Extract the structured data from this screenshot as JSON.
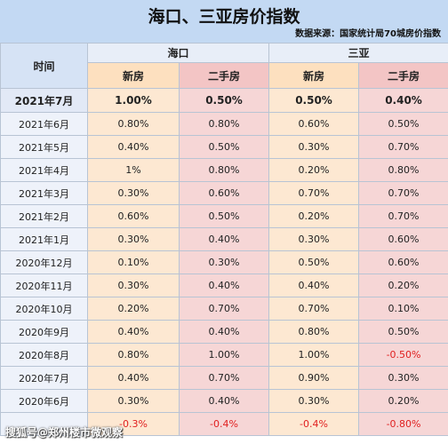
{
  "title": "海口、三亚房价指数",
  "source": "数据来源：国家统计局70城房价指数",
  "header": {
    "time_label": "时间",
    "city_a": "海口",
    "city_b": "三亚",
    "new_label": "新房",
    "old_label": "二手房"
  },
  "rows": [
    {
      "month": "2021年7月",
      "a_new": "1.00%",
      "a_old": "0.50%",
      "b_new": "0.50%",
      "b_old": "0.40%"
    },
    {
      "month": "2021年6月",
      "a_new": "0.80%",
      "a_old": "0.80%",
      "b_new": "0.60%",
      "b_old": "0.50%"
    },
    {
      "month": "2021年5月",
      "a_new": "0.40%",
      "a_old": "0.50%",
      "b_new": "0.30%",
      "b_old": "0.70%"
    },
    {
      "month": "2021年4月",
      "a_new": "1%",
      "a_old": "0.80%",
      "b_new": "0.20%",
      "b_old": "0.80%"
    },
    {
      "month": "2021年3月",
      "a_new": "0.30%",
      "a_old": "0.60%",
      "b_new": "0.70%",
      "b_old": "0.70%"
    },
    {
      "month": "2021年2月",
      "a_new": "0.60%",
      "a_old": "0.50%",
      "b_new": "0.20%",
      "b_old": "0.70%"
    },
    {
      "month": "2021年1月",
      "a_new": "0.30%",
      "a_old": "0.40%",
      "b_new": "0.30%",
      "b_old": "0.60%"
    },
    {
      "month": "2020年12月",
      "a_new": "0.10%",
      "a_old": "0.30%",
      "b_new": "0.50%",
      "b_old": "0.60%"
    },
    {
      "month": "2020年11月",
      "a_new": "0.30%",
      "a_old": "0.40%",
      "b_new": "0.40%",
      "b_old": "0.20%"
    },
    {
      "month": "2020年10月",
      "a_new": "0.20%",
      "a_old": "0.70%",
      "b_new": "0.70%",
      "b_old": "0.10%"
    },
    {
      "month": "2020年9月",
      "a_new": "0.40%",
      "a_old": "0.40%",
      "b_new": "0.80%",
      "b_old": "0.50%"
    },
    {
      "month": "2020年8月",
      "a_new": "0.80%",
      "a_old": "1.00%",
      "b_new": "1.00%",
      "b_old": "-0.50%"
    },
    {
      "month": "2020年7月",
      "a_new": "0.40%",
      "a_old": "0.70%",
      "b_new": "0.90%",
      "b_old": "0.30%"
    },
    {
      "month": "2020年6月",
      "a_new": "0.30%",
      "a_old": "0.40%",
      "b_new": "0.30%",
      "b_old": "0.20%"
    },
    {
      "month": "",
      "a_new": "-0.3%",
      "a_old": "-0.4%",
      "b_new": "-0.4%",
      "b_old": "-0.80%"
    }
  ],
  "watermark": "搜狐号@郑州楼市微观察"
}
